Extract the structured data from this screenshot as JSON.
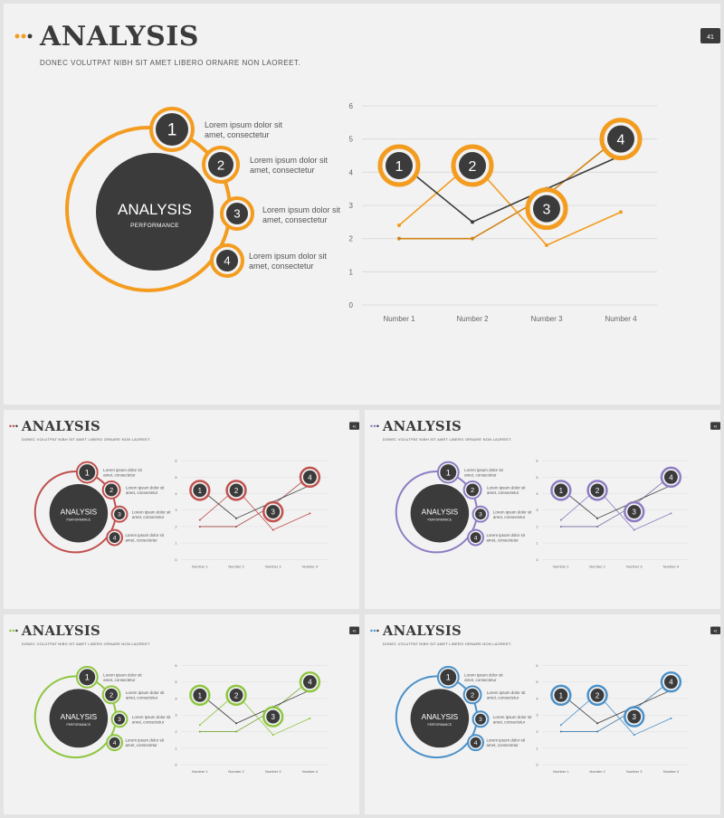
{
  "slides": [
    {
      "id": "main",
      "name": "main-slide",
      "accent": "#f39c1f",
      "dot_colors": [
        "#f39c1f",
        "#f39c1f",
        "#3b3b3b"
      ],
      "title": "ANALYSIS",
      "subtitle": "DONEC VOLUTPAT NIBH SIT AMET LIBERO ORNARE NON LAOREET.",
      "page_number": "41",
      "center_title": "ANALYSIS",
      "center_subtitle": "PERFORMANCE",
      "items": [
        {
          "number": "1",
          "line1": "Lorem ipsum dolor sit",
          "line2": "amet, consectetur"
        },
        {
          "number": "2",
          "line1": "Lorem ipsum dolor sit",
          "line2": "amet, consectetur"
        },
        {
          "number": "3",
          "line1": "Lorem ipsum dolor sit",
          "line2": "amet, consectetur"
        },
        {
          "number": "4",
          "line1": "Lorem ipsum dolor sit",
          "line2": "amet, consectetur"
        }
      ]
    },
    {
      "id": "red",
      "name": "red-variant-slide",
      "accent": "#c0504d",
      "dot_colors": [
        "#c0504d",
        "#c0504d",
        "#3b3b3b"
      ],
      "title": "ANALYSIS",
      "subtitle": "DONEC VOLUTPAT NIBH SIT AMET LIBERO ORNARE NON LAOREET.",
      "page_number": "41",
      "center_title": "ANALYSIS",
      "center_subtitle": "PERFORMANCE",
      "items": [
        {
          "number": "1",
          "line1": "Lorem ipsum dolor sit",
          "line2": "amet, consectetur"
        },
        {
          "number": "2",
          "line1": "Lorem ipsum dolor sit",
          "line2": "amet, consectetur"
        },
        {
          "number": "3",
          "line1": "Lorem ipsum dolor sit",
          "line2": "amet, consectetur"
        },
        {
          "number": "4",
          "line1": "Lorem ipsum dolor sit",
          "line2": "amet, consectetur"
        }
      ]
    },
    {
      "id": "purple",
      "name": "purple-variant-slide",
      "accent": "#8e7cc3",
      "dot_colors": [
        "#8e7cc3",
        "#8e7cc3",
        "#3b3b3b"
      ],
      "title": "ANALYSIS",
      "subtitle": "DONEC VOLUTPAT NIBH SIT AMET LIBERO ORNARE NON LAOREET.",
      "page_number": "41",
      "center_title": "ANALYSIS",
      "center_subtitle": "PERFORMANCE",
      "items": [
        {
          "number": "1",
          "line1": "Lorem ipsum dolor sit",
          "line2": "amet, consectetur"
        },
        {
          "number": "2",
          "line1": "Lorem ipsum dolor sit",
          "line2": "amet, consectetur"
        },
        {
          "number": "3",
          "line1": "Lorem ipsum dolor sit",
          "line2": "amet, consectetur"
        },
        {
          "number": "4",
          "line1": "Lorem ipsum dolor sit",
          "line2": "amet, consectetur"
        }
      ]
    },
    {
      "id": "green",
      "name": "green-variant-slide",
      "accent": "#8dc63f",
      "dot_colors": [
        "#8dc63f",
        "#8dc63f",
        "#3b3b3b"
      ],
      "title": "ANALYSIS",
      "subtitle": "DONEC VOLUTPAT NIBH SIT AMET LIBERO ORNARE NON LAOREET.",
      "page_number": "41",
      "center_title": "ANALYSIS",
      "center_subtitle": "PERFORMANCE",
      "items": [
        {
          "number": "1",
          "line1": "Lorem ipsum dolor sit",
          "line2": "amet, consectetur"
        },
        {
          "number": "2",
          "line1": "Lorem ipsum dolor sit",
          "line2": "amet, consectetur"
        },
        {
          "number": "3",
          "line1": "Lorem ipsum dolor sit",
          "line2": "amet, consectetur"
        },
        {
          "number": "4",
          "line1": "Lorem ipsum dolor sit",
          "line2": "amet, consectetur"
        }
      ]
    },
    {
      "id": "blue",
      "name": "blue-variant-slide",
      "accent": "#4a90c8",
      "dot_colors": [
        "#4a90c8",
        "#4a90c8",
        "#3b3b3b"
      ],
      "title": "ANALYSIS",
      "subtitle": "DONEC VOLUTPAT NIBH SIT AMET LIBERO ORNARE NON LAOREET.",
      "page_number": "41",
      "center_title": "ANALYSIS",
      "center_subtitle": "PERFORMANCE",
      "items": [
        {
          "number": "1",
          "line1": "Lorem ipsum dolor sit",
          "line2": "amet, consectetur"
        },
        {
          "number": "2",
          "line1": "Lorem ipsum dolor sit",
          "line2": "amet, consectetur"
        },
        {
          "number": "3",
          "line1": "Lorem ipsum dolor sit",
          "line2": "amet, consectetur"
        },
        {
          "number": "4",
          "line1": "Lorem ipsum dolor sit",
          "line2": "amet, consectetur"
        }
      ]
    }
  ],
  "chart_data": {
    "type": "line",
    "categories": [
      "Number 1",
      "Number 2",
      "Number 3",
      "Number 4"
    ],
    "ylim": [
      0,
      6
    ],
    "yticks": [
      "0",
      "1",
      "2",
      "3",
      "4",
      "5",
      "6"
    ],
    "grid": true,
    "series": [
      {
        "values": [
          4.3,
          2.5,
          3.5,
          4.5
        ],
        "color": "dark",
        "markers": [
          "1",
          "2",
          "3",
          "4"
        ],
        "marker_values": [
          4.2,
          4.2,
          2.9,
          5.0
        ]
      },
      {
        "values": [
          2.4,
          4.3,
          1.8,
          2.8
        ],
        "color": "accent"
      },
      {
        "values": [
          2.0,
          2.0,
          3.3,
          5.1
        ],
        "color": "accent-dark"
      }
    ]
  }
}
